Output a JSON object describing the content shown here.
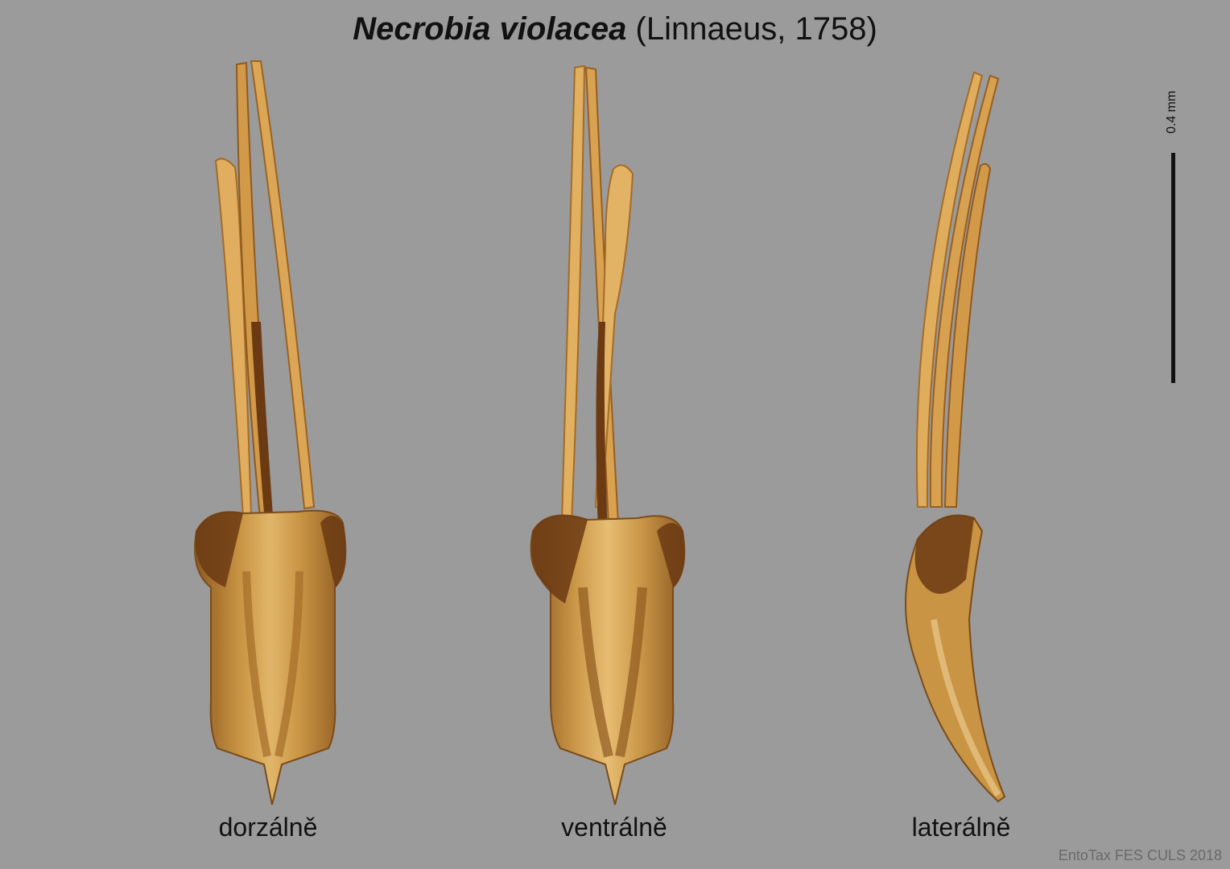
{
  "title": {
    "species": "Necrobia violacea",
    "authority": "(Linnaeus, 1758)"
  },
  "views": [
    {
      "label": "dorzálně"
    },
    {
      "label": "ventrálně"
    },
    {
      "label": "laterálně"
    }
  ],
  "scale": {
    "label": "0.4 mm"
  },
  "credit": "EntoTax FES CULS 2018",
  "colors": {
    "background": "#9b9b9b",
    "specimen_light": "#d9a75a",
    "specimen_mid": "#b97a2c",
    "specimen_dark": "#6b3a13",
    "text": "#111111"
  }
}
